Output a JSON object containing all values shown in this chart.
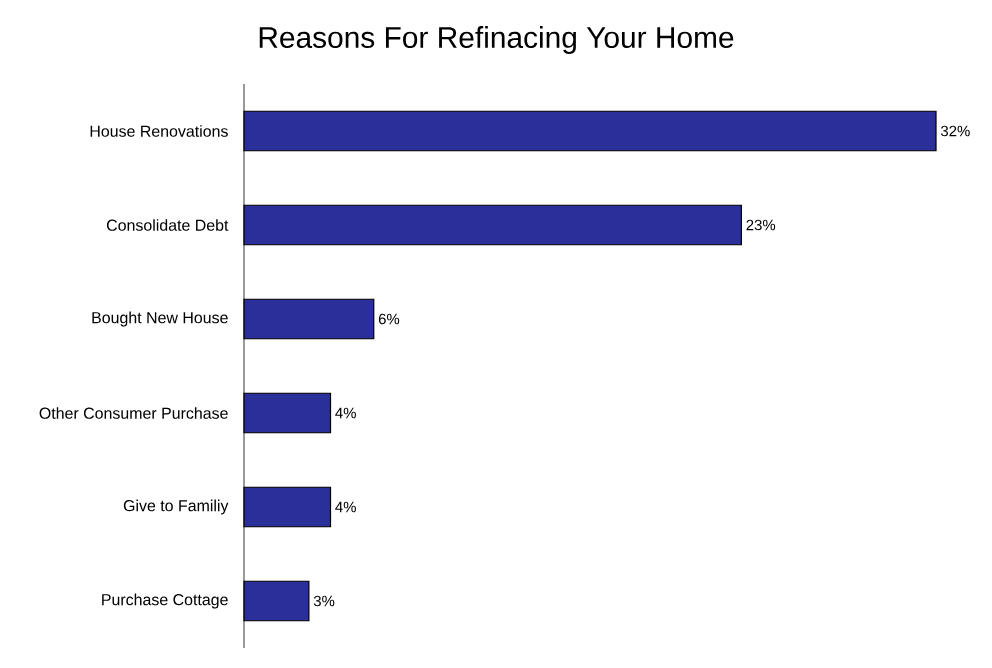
{
  "chart_data": {
    "type": "bar",
    "orientation": "horizontal",
    "title": "Reasons For Refinacing Your Home",
    "categories": [
      "House Renovations",
      "Consolidate Debt",
      "Bought New House",
      "Other Consumer Purchase",
      "Give to Familiy",
      "Purchase Cottage"
    ],
    "values": [
      32,
      23,
      6,
      4,
      4,
      3
    ],
    "value_labels": [
      "32%",
      "23%",
      "6%",
      "4%",
      "4%",
      "3%"
    ],
    "color": "#2b2f9a",
    "xlim": [
      0,
      32
    ],
    "tick_labels": "y"
  }
}
